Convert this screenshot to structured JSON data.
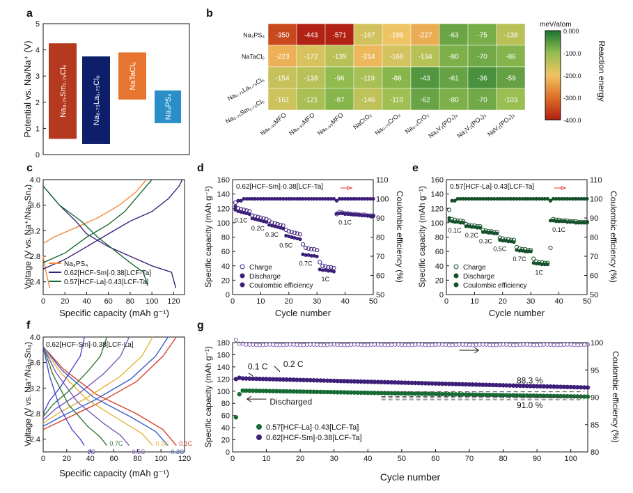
{
  "panel_letters": {
    "a": "a",
    "b": "b",
    "c": "c",
    "d": "d",
    "e": "e",
    "f": "f",
    "g": "g"
  },
  "colors": {
    "sm": "#3d1f7a",
    "la": "#166a33",
    "na3ps4": "#ef8a3c",
    "bar_sm": "#b5391f",
    "bar_la": "#0d1f6b",
    "bar_ta": "#e8752f",
    "bar_ps": "#2a8ec9"
  },
  "chart_data": [
    {
      "id": "a",
      "type": "bar",
      "ylabel": "Potential vs. Na/Na⁺ (V)",
      "ylim": [
        0,
        5
      ],
      "bars": [
        {
          "label": "Na₀.₇₅Sm₁.₇₅Cl₆",
          "low": 0.6,
          "high": 4.25
        },
        {
          "label": "Na₀.₇₅La₁.₇₅Cl₆",
          "low": 0.4,
          "high": 3.75
        },
        {
          "label": "NaTaCl₆",
          "low": 2.1,
          "high": 3.9
        },
        {
          "label": "Na₃PS₄",
          "low": 1.2,
          "high": 2.45
        }
      ]
    },
    {
      "id": "b",
      "type": "heatmap",
      "rows": [
        "Na₃PS₄",
        "NaTaCl₆",
        "Na₀.₇₅La₁.₇₅Cl₆",
        "Na₀.₇₅Sm₁.₇₅Cl₆"
      ],
      "columns": [
        "Na₀.₄₅MFO",
        "Na₀.₅₅MFO",
        "Na₀.₆₅MFO",
        "NaCrO₂",
        "Na₀.₇₅CrO₂",
        "Na₀.₅CrO₂",
        "Na₃V₂(PO₄)₃",
        "Na₂V₂(PO₄)₃",
        "NaV₂(PO₄)₃"
      ],
      "values": [
        [
          -350,
          -443,
          -571,
          -167,
          -198,
          -227,
          -63,
          -75,
          -138
        ],
        [
          -223,
          -172,
          -139,
          -214,
          -168,
          -134,
          -80,
          -70,
          -86
        ],
        [
          -154,
          -138,
          -96,
          -119,
          -88,
          -43,
          -61,
          -36,
          -59
        ],
        [
          -161,
          -121,
          -87,
          -146,
          -110,
          -62,
          -80,
          -70,
          -103
        ]
      ],
      "colorbar": {
        "title": "meV/atom",
        "label": "Reaction energy",
        "ticks": [
          "0.000",
          "-100.0",
          "-200.0",
          "-300.0",
          "-400.0"
        ],
        "range": [
          -400,
          0
        ]
      }
    },
    {
      "id": "c",
      "type": "line",
      "xlabel": "Specific capacity (mAh g⁻¹)",
      "ylabel": "Voltage (V vs. Na⁺/Na₁₅Sn₄)",
      "xlim": [
        0,
        130
      ],
      "ylim": [
        2.2,
        4.0
      ],
      "xticks": [
        0,
        20,
        40,
        60,
        80,
        100,
        120
      ],
      "yticks": [
        "2.4",
        "2.8",
        "3.2",
        "3.6",
        "4.0"
      ],
      "legend": [
        "Na₃PS₄",
        "0.62[HCF-Sm]·0.38[LCF-Ta]",
        "0.57[HCF-La]·0.43[LCF-Ta]"
      ],
      "series": [
        {
          "name": "Na3PS4-charge",
          "key": "na3ps4",
          "x": [
            0,
            10,
            30,
            50,
            70,
            85,
            95
          ],
          "y": [
            3.0,
            3.1,
            3.25,
            3.4,
            3.6,
            3.8,
            4.0
          ]
        },
        {
          "name": "Na3PS4-discharge",
          "key": "na3ps4",
          "x": [
            0,
            2,
            4,
            6
          ],
          "y": [
            2.8,
            2.6,
            2.45,
            2.3
          ]
        },
        {
          "name": "Sm-charge",
          "key": "sm",
          "x": [
            0,
            20,
            40,
            60,
            80,
            100,
            115,
            125,
            128
          ],
          "y": [
            2.6,
            2.75,
            2.95,
            3.15,
            3.35,
            3.5,
            3.7,
            3.9,
            4.0
          ]
        },
        {
          "name": "Sm-discharge",
          "key": "sm",
          "x": [
            0,
            15,
            30,
            40,
            60,
            80,
            100,
            118,
            122
          ],
          "y": [
            3.9,
            3.6,
            3.35,
            3.15,
            2.95,
            2.8,
            2.65,
            2.55,
            2.3
          ]
        },
        {
          "name": "La-charge",
          "key": "la",
          "x": [
            0,
            20,
            40,
            60,
            75,
            90,
            100
          ],
          "y": [
            2.7,
            2.85,
            3.1,
            3.3,
            3.5,
            3.8,
            4.0
          ]
        },
        {
          "name": "La-discharge",
          "key": "la",
          "x": [
            0,
            15,
            35,
            50,
            65,
            80,
            92,
            96
          ],
          "y": [
            3.9,
            3.6,
            3.35,
            3.1,
            2.9,
            2.7,
            2.55,
            2.35
          ]
        }
      ]
    },
    {
      "id": "d",
      "type": "scatter",
      "xlabel": "Cycle number",
      "ylabel": "Specific capacity (mAh g⁻¹)",
      "y2label": "Coulombic efficiency (%)",
      "title": "0.62[HCF-Sm]·0.38[LCF-Ta]",
      "xlim": [
        0,
        50
      ],
      "ylim": [
        0,
        160
      ],
      "y2lim": [
        50,
        110
      ],
      "xticks": [
        0,
        10,
        20,
        30,
        40,
        50
      ],
      "yticks": [
        0,
        20,
        40,
        60,
        80,
        100,
        120,
        140,
        160
      ],
      "y2ticks": [
        50,
        60,
        70,
        80,
        90,
        100,
        110
      ],
      "legend": [
        "Charge",
        "Discharge",
        "Coulombic efficiency"
      ],
      "rate_labels": [
        "0.1C",
        "0.2C",
        "0.3C",
        "0.5C",
        "0.7C",
        "1C",
        "0.1C"
      ],
      "discharge": [
        118,
        116,
        115,
        114,
        113,
        112,
        106,
        105,
        104,
        103,
        102,
        101,
        97,
        96,
        95,
        94,
        93,
        92,
        82,
        81,
        80,
        79,
        78,
        77,
        56,
        55,
        55,
        54,
        54,
        53,
        35,
        34,
        34,
        33,
        33,
        32,
        113,
        113,
        113,
        112,
        112,
        112,
        111,
        111,
        111,
        110,
        110,
        110,
        109,
        109
      ],
      "charge": [
        128,
        120,
        119,
        118,
        117,
        116,
        110,
        109,
        108,
        107,
        106,
        105,
        103,
        100,
        99,
        98,
        97,
        96,
        90,
        88,
        87,
        86,
        85,
        84,
        70,
        65,
        64,
        63,
        63,
        62,
        45,
        40,
        39,
        38,
        38,
        37,
        112,
        115,
        114,
        113,
        113,
        112,
        112,
        112,
        111,
        111,
        111,
        110,
        110,
        110
      ],
      "ce": [
        96,
        99,
        99,
        100,
        100,
        100,
        100,
        100,
        100,
        100,
        100,
        100,
        100,
        100,
        100,
        100,
        100,
        100,
        100,
        100,
        100,
        100,
        100,
        100,
        100,
        100,
        100,
        100,
        100,
        100,
        100,
        100,
        100,
        100,
        100,
        100,
        99,
        100,
        100,
        100,
        100,
        100,
        100,
        100,
        100,
        100,
        100,
        100,
        100,
        100
      ]
    },
    {
      "id": "e",
      "type": "scatter",
      "xlabel": "Cycle number",
      "ylabel": "Specific capacity (mAh g⁻¹)",
      "y2label": "Coulombic efficiency (%)",
      "title": "0.57[HCF-La]·0.43[LCF-Ta]",
      "xlim": [
        0,
        50
      ],
      "ylim": [
        0,
        160
      ],
      "y2lim": [
        50,
        110
      ],
      "xticks": [
        0,
        10,
        20,
        30,
        40,
        50
      ],
      "yticks": [
        0,
        20,
        40,
        60,
        80,
        100,
        120,
        140,
        160
      ],
      "y2ticks": [
        50,
        60,
        70,
        80,
        90,
        100,
        110
      ],
      "legend": [
        "Charge",
        "Discharge",
        "Coulombic efficiency"
      ],
      "rate_labels": [
        "0.1C",
        "0.2C",
        "0.3C",
        "0.5C",
        "0.7C",
        "1C",
        "0.1C"
      ],
      "discharge": [
        103,
        102,
        101,
        101,
        100,
        100,
        95,
        95,
        94,
        94,
        93,
        93,
        87,
        87,
        86,
        86,
        85,
        85,
        76,
        75,
        75,
        74,
        74,
        73,
        62,
        61,
        61,
        60,
        60,
        60,
        44,
        43,
        43,
        42,
        42,
        42,
        103,
        103,
        102,
        102,
        102,
        102,
        101,
        101,
        101,
        100,
        100,
        100,
        100,
        100
      ],
      "charge": [
        118,
        105,
        104,
        103,
        103,
        102,
        98,
        97,
        96,
        96,
        95,
        95,
        90,
        89,
        88,
        88,
        87,
        87,
        79,
        78,
        77,
        77,
        76,
        76,
        66,
        64,
        63,
        63,
        62,
        62,
        50,
        46,
        45,
        45,
        44,
        44,
        65,
        105,
        104,
        104,
        103,
        103,
        103,
        102,
        102,
        102,
        101,
        101,
        101,
        101
      ],
      "ce": [
        90,
        99,
        99,
        100,
        100,
        100,
        100,
        100,
        100,
        100,
        100,
        100,
        100,
        100,
        100,
        100,
        100,
        100,
        100,
        100,
        100,
        100,
        100,
        100,
        100,
        100,
        100,
        100,
        100,
        100,
        100,
        100,
        100,
        100,
        100,
        100,
        99,
        100,
        100,
        100,
        100,
        100,
        100,
        100,
        100,
        100,
        100,
        100,
        100,
        100
      ]
    },
    {
      "id": "f",
      "type": "line",
      "xlabel": "Specific capacity (mAh g⁻¹)",
      "ylabel": "Voltage (V vs. Na⁺/Na₁₅Sn₄)",
      "title": "0.62[HCF-Sm]·0.38[LCF-La]",
      "xlim": [
        0,
        120
      ],
      "ylim": [
        2.2,
        4.0
      ],
      "xticks": [
        0,
        20,
        40,
        60,
        80,
        100,
        120
      ],
      "yticks": [
        "2.4",
        "2.8",
        "3.2",
        "3.6",
        "4.0"
      ],
      "rates": [
        {
          "label": "0.1C",
          "color": "#d9412b",
          "cap": 113
        },
        {
          "label": "0.2C",
          "color": "#3a5cc8",
          "cap": 106
        },
        {
          "label": "0.3C",
          "color": "#e3b43a",
          "cap": 93
        },
        {
          "label": "0.5C",
          "color": "#7a5ab5",
          "cap": 73
        },
        {
          "label": "0.7C",
          "color": "#2f7a3a",
          "cap": 54
        },
        {
          "label": "1C",
          "color": "#4a4ad0",
          "cap": 35
        }
      ]
    },
    {
      "id": "g",
      "type": "scatter",
      "xlabel": "Cycle number",
      "ylabel": "Specific capacity (mAh g⁻¹)",
      "y2label": "Coulombic efficiency (%)",
      "xlim": [
        0,
        105
      ],
      "ylim": [
        0,
        180
      ],
      "y2lim": [
        80,
        100
      ],
      "xticks": [
        0,
        10,
        20,
        30,
        40,
        50,
        60,
        70,
        80,
        90,
        100
      ],
      "yticks": [
        0,
        20,
        40,
        60,
        80,
        100,
        120,
        140,
        160,
        180
      ],
      "y2ticks": [
        80,
        85,
        90,
        95,
        100
      ],
      "legend": [
        "0.57[HCF-La]·0.43[LCF-Ta]",
        "0.62[HCF-Sm]·0.38[LCF-Ta]"
      ],
      "annotations": {
        "rate1": "0.1 C",
        "rate2": "0.2 C",
        "discharged": "Discharged",
        "ret_sm": "88.3 %",
        "ret_la": "91.0 %"
      },
      "sm_start": 121,
      "sm_end": 106,
      "la_start": 101,
      "la_end": 91,
      "ce": 99.6
    }
  ]
}
